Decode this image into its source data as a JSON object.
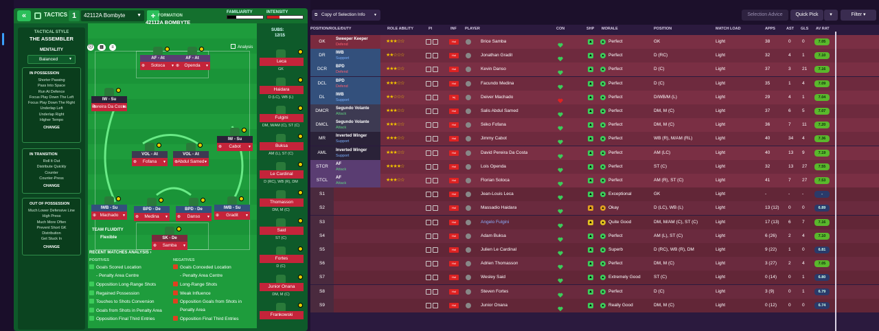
{
  "tactics_panel": {
    "back_label": "«",
    "tab_label": "TACTICS",
    "slot_number": "1",
    "tactic_name": "42112A Bombyte",
    "add_label": "+",
    "familiarity_label": "FAMILIARITY",
    "intensity_label": "INTENSITY",
    "familiarity_level": 0.25,
    "intensity_level": 0.35,
    "tactical_style_label": "TACTICAL STYLE",
    "tactical_style_value": "THE ASSEMBLER",
    "mentality_label": "MENTALITY",
    "mentality_value": "Balanced",
    "in_possession": {
      "title": "IN POSSESSION",
      "items": [
        "Shorter Passing",
        "Pass Into Space",
        "Run At Defence",
        "Focus Play Down The Left",
        "Focus Play Down The Right",
        "Underlap Left",
        "Underlap Right",
        "Higher Tempo"
      ],
      "change": "CHANGE"
    },
    "in_transition": {
      "title": "IN TRANSITION",
      "items": [
        "Roll It Out",
        "Distribute Quickly",
        "Counter",
        "Counter-Press"
      ],
      "change": "CHANGE"
    },
    "out_of_possession": {
      "title": "OUT OF POSSESSION",
      "items": [
        "Much Lower Defensive Line",
        "High Press",
        "Much More Often",
        "Prevent Short GK",
        "Distribution",
        "Get Stuck In"
      ],
      "change": "CHANGE"
    },
    "formation_label": "FORMATION",
    "formation_name": "42112A BOMBYTE",
    "subs_label": "SUBS:",
    "subs_value": "12/15",
    "analysis_label": "Analysis",
    "team_fluidity_label": "TEAM FLUIDITY",
    "team_fluidity_value": "Flexible",
    "recent_matches_label": "RECENT MATCHES ANALYSIS",
    "positives_label": "POSITIVES",
    "negatives_label": "NEGATIVES",
    "positives": [
      "Goals Scored Location",
      "- Penalty Area Centre",
      "Opposition Long-Range Shots",
      "Regained Possession",
      "Touches to Shots Conversion",
      "Goals from Shots in Penalty Area",
      "Opposition Final Third Entries"
    ],
    "negatives": [
      "Goals Conceded Location",
      "- Penalty Area Centre",
      "Long-Range Shots",
      "Weak Influence",
      "Opposition Goals from Shots in",
      "Penalty Area",
      "Opposition Final Third Entries"
    ],
    "pitch_players": [
      {
        "role": "AF - At",
        "name": "Sotoca"
      },
      {
        "role": "AF - At",
        "name": "Openda"
      },
      {
        "role": "IW - Su",
        "name": "Pereira Da Costa"
      },
      {
        "role": "IW - Su",
        "name": "Cabot"
      },
      {
        "role": "VOL - At",
        "name": "Fofana"
      },
      {
        "role": "VOL - At",
        "name": "Abdul Samed"
      },
      {
        "role": "IWB - Su",
        "name": "Machado"
      },
      {
        "role": "BPD - De",
        "name": "Medina"
      },
      {
        "role": "BPD - De",
        "name": "Danso"
      },
      {
        "role": "IWB - Su",
        "name": "Gradit"
      },
      {
        "role": "SK - De",
        "name": "Samba"
      }
    ],
    "sub_players": [
      {
        "name": "Leca",
        "pos": "GK"
      },
      {
        "name": "Haidara",
        "pos": "D (LC), WB (L)"
      },
      {
        "name": "Fulgini",
        "pos": "DM, M/AM (C), ST (C)"
      },
      {
        "name": "Buksa",
        "pos": "AM (L), ST (C)"
      },
      {
        "name": "Le Cardinal",
        "pos": "D (RC), WB (R), DM"
      },
      {
        "name": "Thomasson",
        "pos": "DM, M (C)"
      },
      {
        "name": "Said",
        "pos": "ST (C)"
      },
      {
        "name": "Fortes",
        "pos": "D (C)"
      },
      {
        "name": "Junior Onana",
        "pos": "DM, M (C)"
      },
      {
        "name": "Frankowski",
        "pos": ""
      }
    ]
  },
  "table": {
    "copy_button": "Copy of Selection Info",
    "selection_advice": "Selection Advice",
    "quick_pick": "Quick Pick",
    "filter": "Filter",
    "headers": {
      "pos": "POSITION/ROLE/DUTY",
      "ability": "ROLE ABILITY",
      "pi": "PI",
      "inf": "INF",
      "player": "PLAYER",
      "con": "CON",
      "shp": "SHP",
      "morale": "MORALE",
      "position": "POSITION",
      "load": "MATCH LOAD",
      "apps": "APPS",
      "ast": "AST",
      "gls": "GLS",
      "avrat": "AV RAT"
    },
    "rows": [
      {
        "slot": "GK",
        "role": "Sweeper Keeper",
        "duty": "Defend",
        "stars": "★★★☆☆",
        "inf": "Hol",
        "name": "Brice Samba",
        "morale": "Perfect",
        "position": "GK",
        "load": "Light",
        "apps": "38",
        "ast": "0",
        "gls": "0",
        "avrat": "7.05",
        "band": "#7a2a3e"
      },
      {
        "slot": "DR",
        "role": "IWB",
        "duty": "Support",
        "stars": "★★☆☆☆",
        "inf": "Hol",
        "name": "Jonathan Gradit",
        "morale": "Perfect",
        "position": "D (RC)",
        "load": "Light",
        "apps": "32",
        "ast": "4",
        "gls": "1",
        "avrat": "7.10",
        "band": "#33507c"
      },
      {
        "slot": "DCR",
        "role": "BPD",
        "duty": "Defend",
        "stars": "★★★☆☆",
        "inf": "Hol",
        "name": "Kevin Danso",
        "morale": "Perfect",
        "position": "D (C)",
        "load": "Light",
        "apps": "37",
        "ast": "3",
        "gls": "21",
        "avrat": "7.16",
        "band": "#33507c"
      },
      {
        "slot": "DCL",
        "role": "BPD",
        "duty": "Defend",
        "stars": "★★★☆☆",
        "inf": "Hol",
        "name": "Facundo Medina",
        "morale": "Perfect",
        "position": "D (C)",
        "load": "Light",
        "apps": "35",
        "ast": "1",
        "gls": "4",
        "avrat": "7.09",
        "band": "#33507c"
      },
      {
        "slot": "DL",
        "role": "IWB",
        "duty": "Support",
        "stars": "★★☆☆☆",
        "inf": "Inj",
        "name": "Deiver Machado",
        "morale": "Perfect",
        "position": "D/WB/M (L)",
        "load": "Light",
        "apps": "29",
        "ast": "4",
        "gls": "1",
        "avrat": "7.04",
        "band": "#33507c"
      },
      {
        "slot": "DMCR",
        "role": "Segundo Volante",
        "duty": "Attack",
        "stars": "★★★☆☆",
        "inf": "Hol",
        "name": "Salis Abdul Samed",
        "morale": "Perfect",
        "position": "DM, M (C)",
        "load": "Light",
        "apps": "37",
        "ast": "6",
        "gls": "5",
        "avrat": "7.07",
        "band": "#3d3a52"
      },
      {
        "slot": "DMCL",
        "role": "Segundo Volante",
        "duty": "Attack",
        "stars": "★★★☆☆",
        "inf": "Hol",
        "name": "Séko Fofana",
        "morale": "Perfect",
        "position": "DM, M (C)",
        "load": "Light",
        "apps": "36",
        "ast": "7",
        "gls": "11",
        "avrat": "7.20",
        "band": "#3d3a52"
      },
      {
        "slot": "MR",
        "role": "Inverted Winger",
        "duty": "Support",
        "stars": "★★★☆☆",
        "inf": "Hol",
        "name": "Jimmy Cabot",
        "morale": "Perfect",
        "position": "WB (R), M/AM (RL)",
        "load": "Light",
        "apps": "40",
        "ast": "34",
        "gls": "4",
        "avrat": "7.36",
        "band": "#2a2238"
      },
      {
        "slot": "AML",
        "role": "Inverted Winger",
        "duty": "Support",
        "stars": "★★★☆☆",
        "inf": "Hol",
        "name": "David Pereira Da Costa",
        "morale": "Perfect",
        "position": "AM (LC)",
        "load": "Light",
        "apps": "40",
        "ast": "13",
        "gls": "9",
        "avrat": "7.19",
        "band": "#2a2238"
      },
      {
        "slot": "STCR",
        "role": "AF",
        "duty": "Attack",
        "stars": "★★★★☆",
        "inf": "Hol",
        "name": "Lois Openda",
        "morale": "Perfect",
        "position": "ST (C)",
        "load": "Light",
        "apps": "32",
        "ast": "13",
        "gls": "27",
        "avrat": "7.55",
        "band": "#5a3d72"
      },
      {
        "slot": "STCL",
        "role": "AF",
        "duty": "Attack",
        "stars": "★★★☆☆",
        "inf": "Hol",
        "name": "Florian Sotoca",
        "morale": "Perfect",
        "position": "AM (R), ST (C)",
        "load": "Light",
        "apps": "41",
        "ast": "7",
        "gls": "27",
        "avrat": "7.53",
        "band": "#5a3d72"
      },
      {
        "slot": "S1",
        "role": "",
        "duty": "",
        "stars": "",
        "inf": "Hol",
        "name": "Jean-Louis Leca",
        "morale": "Exceptional",
        "position": "GK",
        "load": "Light",
        "apps": "-",
        "ast": "-",
        "gls": "-",
        "avrat": "-",
        "band": ""
      },
      {
        "slot": "S2",
        "role": "",
        "duty": "",
        "stars": "",
        "inf": "Hol",
        "name": "Massadio Haidara",
        "morale": "Okay",
        "position": "D (LC), WB (L)",
        "load": "Light",
        "apps": "13 (12)",
        "ast": "0",
        "gls": "0",
        "avrat": "6.89",
        "band": ""
      },
      {
        "slot": "S3",
        "role": "",
        "duty": "",
        "stars": "",
        "inf": "Hol",
        "name": "Angelo Fulgini",
        "morale": "Quite Good",
        "position": "DM, M/AM (C), ST (C)",
        "load": "Light",
        "apps": "17 (13)",
        "ast": "6",
        "gls": "7",
        "avrat": "7.16",
        "band": ""
      },
      {
        "slot": "S4",
        "role": "",
        "duty": "",
        "stars": "",
        "inf": "Hol",
        "name": "Adam Buksa",
        "morale": "Perfect",
        "position": "AM (L), ST (C)",
        "load": "Light",
        "apps": "6 (26)",
        "ast": "2",
        "gls": "4",
        "avrat": "7.10",
        "band": ""
      },
      {
        "slot": "S5",
        "role": "",
        "duty": "",
        "stars": "",
        "inf": "Hol",
        "name": "Julien Le Cardinal",
        "morale": "Superb",
        "position": "D (RC), WB (R), DM",
        "load": "Light",
        "apps": "9 (22)",
        "ast": "1",
        "gls": "0",
        "avrat": "6.81",
        "band": ""
      },
      {
        "slot": "S6",
        "role": "",
        "duty": "",
        "stars": "",
        "inf": "Hol",
        "name": "Adrien Thomasson",
        "morale": "Perfect",
        "position": "DM, M (C)",
        "load": "Light",
        "apps": "3 (27)",
        "ast": "2",
        "gls": "4",
        "avrat": "7.05",
        "band": ""
      },
      {
        "slot": "S7",
        "role": "",
        "duty": "",
        "stars": "",
        "inf": "Hol",
        "name": "Wesley Said",
        "morale": "Extremely Good",
        "position": "ST (C)",
        "load": "Light",
        "apps": "0 (14)",
        "ast": "0",
        "gls": "1",
        "avrat": "6.80",
        "band": ""
      },
      {
        "slot": "S8",
        "role": "",
        "duty": "",
        "stars": "",
        "inf": "Hol",
        "name": "Steven Fortes",
        "morale": "Perfect",
        "position": "D (C)",
        "load": "Light",
        "apps": "3 (9)",
        "ast": "0",
        "gls": "1",
        "avrat": "6.79",
        "band": ""
      },
      {
        "slot": "S9",
        "role": "",
        "duty": "",
        "stars": "",
        "inf": "Hol",
        "name": "Junior Onana",
        "morale": "Really Good",
        "position": "DM, M (C)",
        "load": "Light",
        "apps": "0 (12)",
        "ast": "0",
        "gls": "0",
        "avrat": "6.74",
        "band": ""
      }
    ]
  },
  "colors": {
    "accent_green": "#2bbf5a",
    "pitch": "#1e9c3c",
    "red": "#c4243a",
    "morale_green": "#3ccc5a",
    "rating_green": "#5ab82c",
    "rating_blue": "#2a3a6a"
  }
}
